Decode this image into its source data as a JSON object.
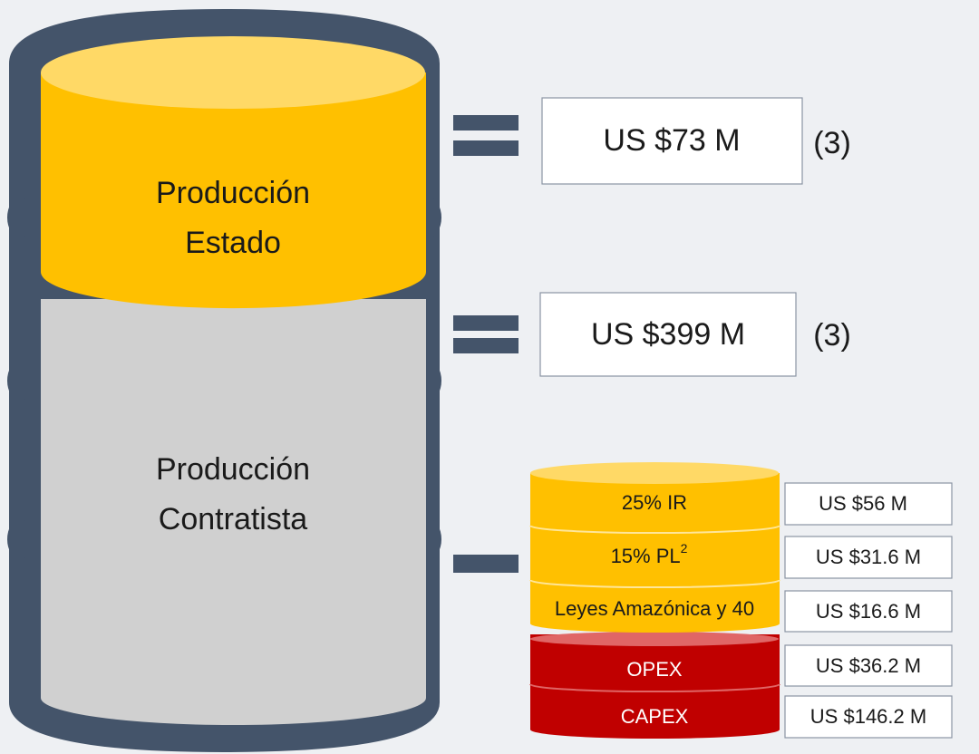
{
  "barrel": {
    "top_label": [
      "Producción",
      "Estado"
    ],
    "bottom_label": [
      "Producción",
      "Contratista"
    ]
  },
  "results": [
    {
      "value": "US $73 M",
      "note": "(3)"
    },
    {
      "value": "US $399 M",
      "note": "(3)"
    }
  ],
  "deductions": [
    {
      "label": "25% IR",
      "value": "US $56 M"
    },
    {
      "label": "15% PL",
      "sup": "2",
      "value": "US $31.6 M"
    },
    {
      "label": "Leyes Amazónica y 40",
      "value": "US $16.6 M"
    },
    {
      "label": "OPEX",
      "value": "US $36.2 M"
    },
    {
      "label": "CAPEX",
      "value": "US $146.2 M"
    }
  ]
}
